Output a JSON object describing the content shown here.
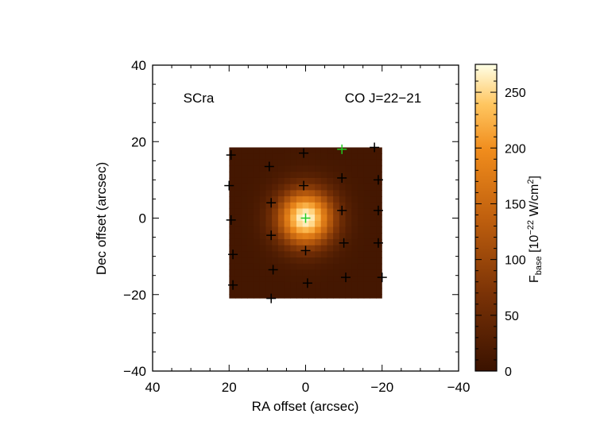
{
  "chart_data": {
    "type": "heatmap",
    "title": "",
    "annotations": {
      "source": "SCra",
      "line": "CO J=22−21"
    },
    "xlabel": "RA offset (arcsec)",
    "ylabel": "Dec offset (arcsec)",
    "xlim": [
      40,
      -40
    ],
    "ylim": [
      -40,
      40
    ],
    "xticks": [
      40,
      20,
      0,
      -20,
      -40
    ],
    "xtick_labels": [
      "40",
      "20",
      "0",
      "−20",
      "−40"
    ],
    "yticks": [
      40,
      20,
      0,
      -20,
      -40
    ],
    "ytick_labels": [
      "40",
      "20",
      "0",
      "−20",
      "−40"
    ],
    "map_extent": {
      "x": [
        20,
        -20
      ],
      "y": [
        -21,
        18.5
      ]
    },
    "map_peak": {
      "x": 0,
      "y": 0,
      "value": 275
    },
    "map_sigma_arcsec": 5,
    "colorbar": {
      "label_main": "F",
      "label_sub": "base",
      "label_rest_1": " [10",
      "label_sup": "−22",
      "label_rest_2": " W/cm",
      "label_sup2": "2",
      "label_end": "]",
      "range": [
        0,
        275
      ],
      "ticks": [
        0,
        50,
        100,
        150,
        200,
        250
      ],
      "tick_labels": [
        "0",
        "50",
        "100",
        "150",
        "200",
        "250"
      ]
    },
    "spaxels_black": [
      {
        "x": 19.5,
        "y": 16.5
      },
      {
        "x": 9.5,
        "y": 13.5
      },
      {
        "x": 0.5,
        "y": 17
      },
      {
        "x": -18,
        "y": 18.5
      },
      {
        "x": 20,
        "y": 8.5
      },
      {
        "x": 0.5,
        "y": 8.5
      },
      {
        "x": -9.5,
        "y": 10.5
      },
      {
        "x": -19,
        "y": 10
      },
      {
        "x": 19.5,
        "y": -0.5
      },
      {
        "x": 9,
        "y": 4
      },
      {
        "x": -9.5,
        "y": 2
      },
      {
        "x": -19,
        "y": 2
      },
      {
        "x": 9,
        "y": -4.5
      },
      {
        "x": -10,
        "y": -6.5
      },
      {
        "x": -19,
        "y": -6.5
      },
      {
        "x": 0,
        "y": -8.5
      },
      {
        "x": 19,
        "y": -9.5
      },
      {
        "x": 8.5,
        "y": -13.5
      },
      {
        "x": -10.5,
        "y": -15.5
      },
      {
        "x": -20,
        "y": -15.5
      },
      {
        "x": 19,
        "y": -17.5
      },
      {
        "x": 9,
        "y": -21
      },
      {
        "x": -0.5,
        "y": -17
      }
    ],
    "spaxels_green": [
      {
        "x": 0,
        "y": 0
      },
      {
        "x": -9.5,
        "y": 18
      }
    ],
    "colors": {
      "low": "#4a1800",
      "mid": "#c06010",
      "high": "#ff9a20",
      "top": "#ffffe0",
      "marker_black": "#000000",
      "marker_green": "#22cc22"
    }
  }
}
